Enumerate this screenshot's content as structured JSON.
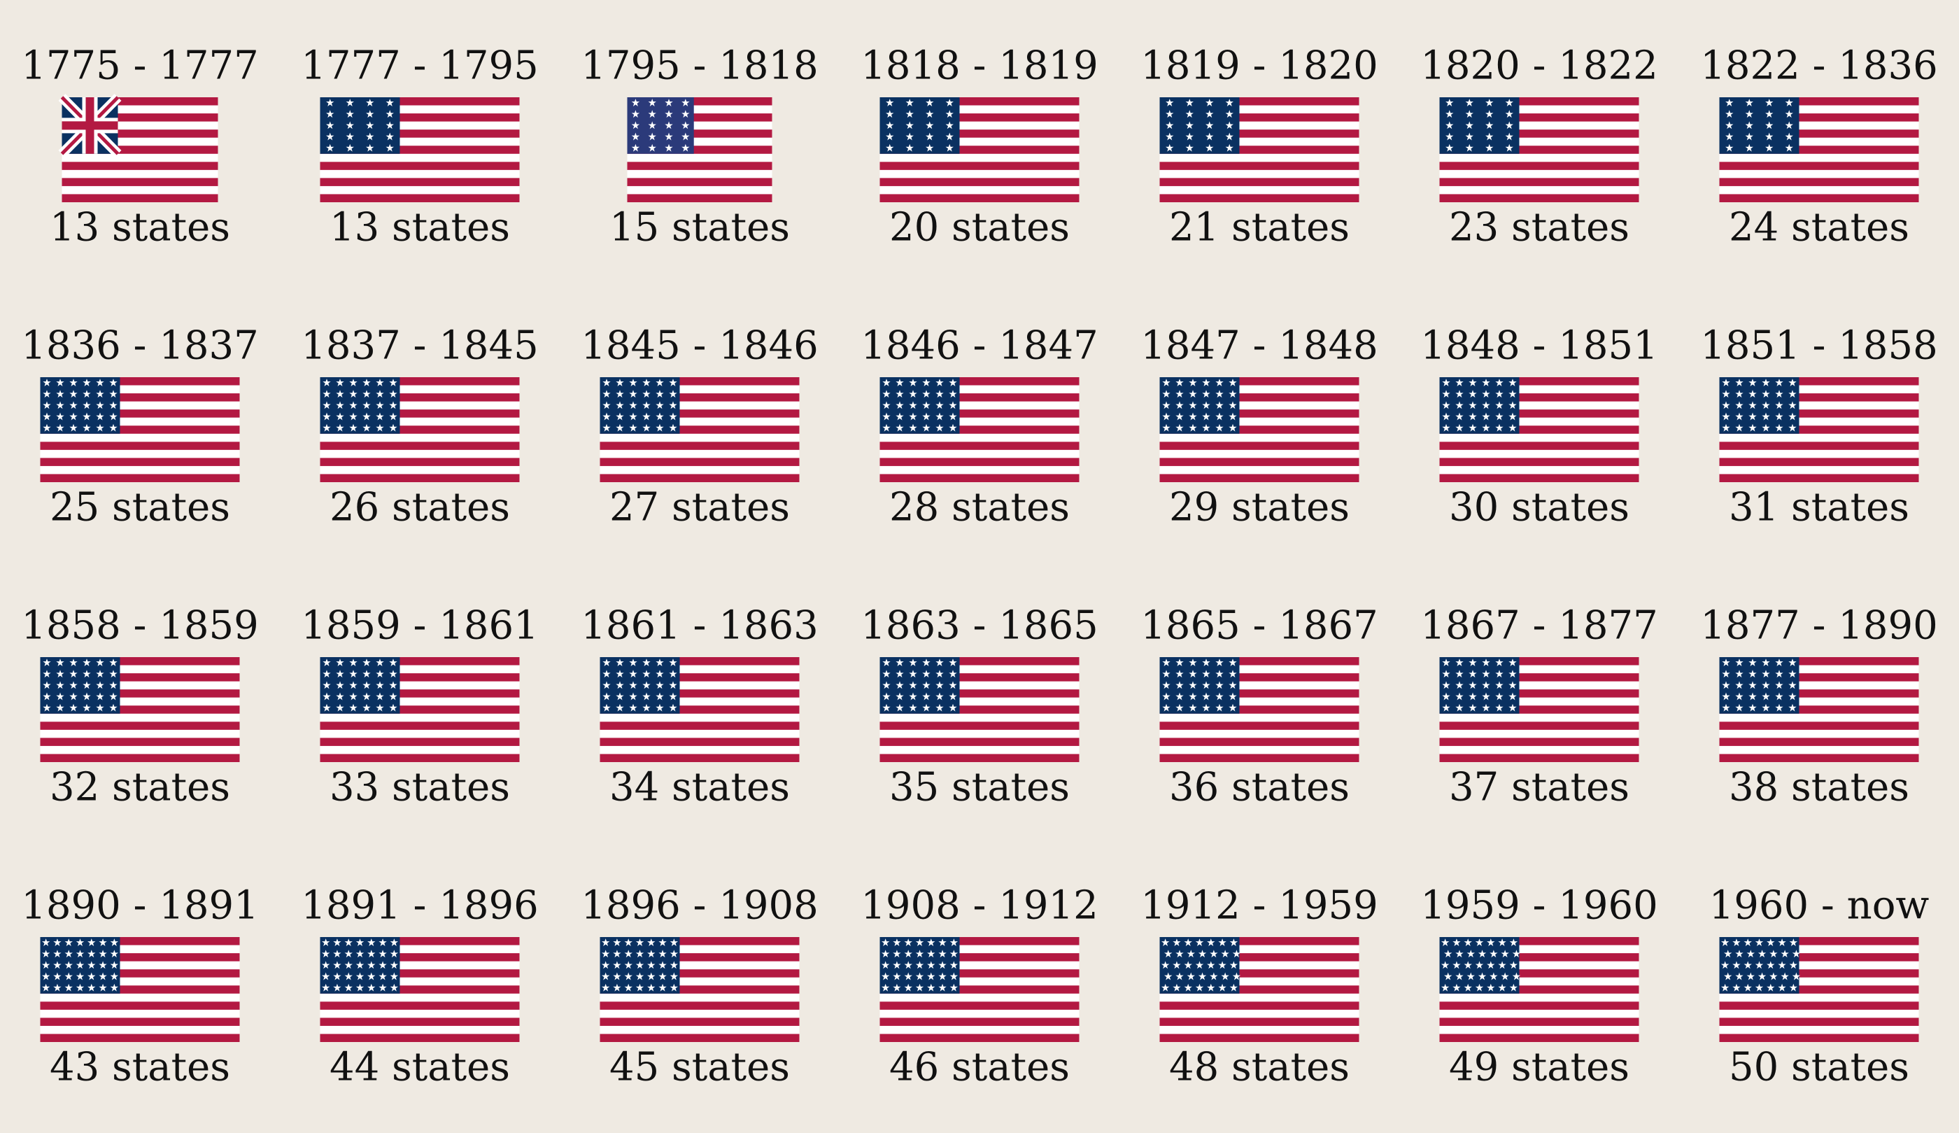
{
  "flags": [
    {
      "years": "1775 - 1777",
      "states": "13 states"
    },
    {
      "years": "1777 - 1795",
      "states": "13 states"
    },
    {
      "years": "1795 - 1818",
      "states": "15 states"
    },
    {
      "years": "1818 - 1819",
      "states": "20 states"
    },
    {
      "years": "1819 - 1820",
      "states": "21 states"
    },
    {
      "years": "1820 - 1822",
      "states": "23 states"
    },
    {
      "years": "1822 - 1836",
      "states": "24 states"
    },
    {
      "years": "1836 - 1837",
      "states": "25 states"
    },
    {
      "years": "1837 - 1845",
      "states": "26 states"
    },
    {
      "years": "1845 - 1846",
      "states": "27 states"
    },
    {
      "years": "1846 - 1847",
      "states": "28 states"
    },
    {
      "years": "1847 - 1848",
      "states": "29 states"
    },
    {
      "years": "1848 - 1851",
      "states": "30 states"
    },
    {
      "years": "1851 - 1858",
      "states": "31 states"
    },
    {
      "years": "1858 - 1859",
      "states": "32 states"
    },
    {
      "years": "1859 - 1861",
      "states": "33 states"
    },
    {
      "years": "1861 - 1863",
      "states": "34 states"
    },
    {
      "years": "1863 - 1865",
      "states": "35 states"
    },
    {
      "years": "1865 - 1867",
      "states": "36 states"
    },
    {
      "years": "1867 - 1877",
      "states": "37 states"
    },
    {
      "years": "1877 - 1890",
      "states": "38 states"
    },
    {
      "years": "1890 - 1891",
      "states": "43 states"
    },
    {
      "years": "1891 - 1896",
      "states": "44 states"
    },
    {
      "years": "1896 - 1908",
      "states": "45 states"
    },
    {
      "years": "1908 - 1912",
      "states": "46 states"
    },
    {
      "years": "1912 - 1959",
      "states": "48 states"
    },
    {
      "years": "1959 - 1960",
      "states": "49 states"
    },
    {
      "years": "1960 - now",
      "states": "50 states"
    }
  ]
}
